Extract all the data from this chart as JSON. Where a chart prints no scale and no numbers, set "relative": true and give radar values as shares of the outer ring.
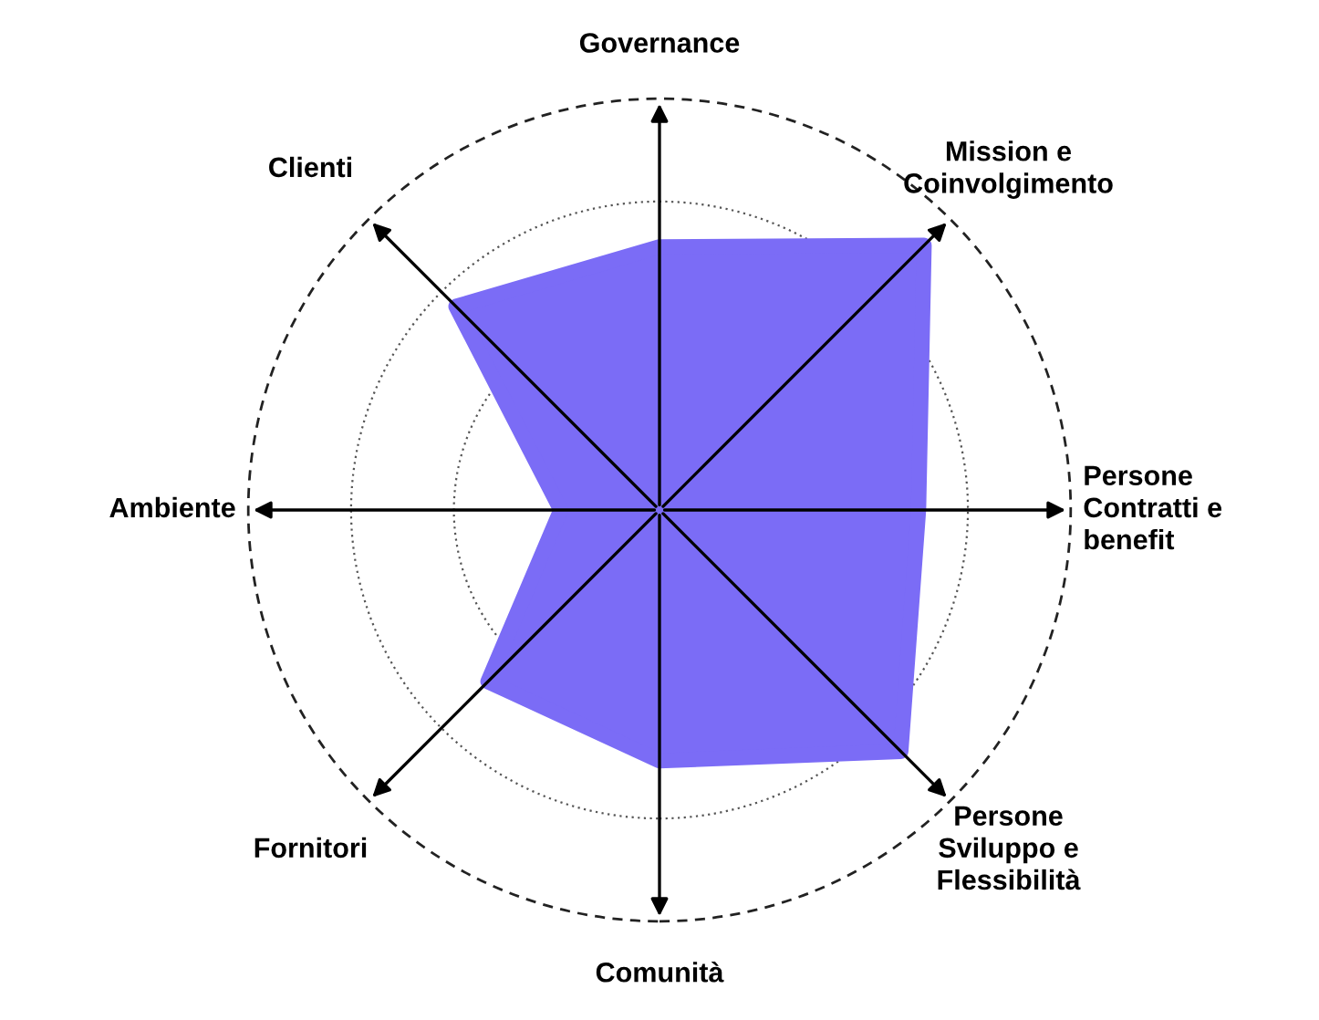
{
  "chart_data": {
    "type": "radar",
    "relative": true,
    "grid": true,
    "categories": [
      "Governance",
      "Mission e\nCoinvolgimento",
      "Persone\nContratti e\nbenefit",
      "Persone\nSviluppo e\nFlessibilità",
      "Comunità",
      "Fornitori",
      "Ambiente",
      "Clienti"
    ],
    "series": [
      {
        "color": "#7b6cf6",
        "values": [
          0.64,
          0.91,
          0.63,
          0.83,
          0.61,
          0.59,
          0.24,
          0.7
        ]
      }
    ]
  }
}
